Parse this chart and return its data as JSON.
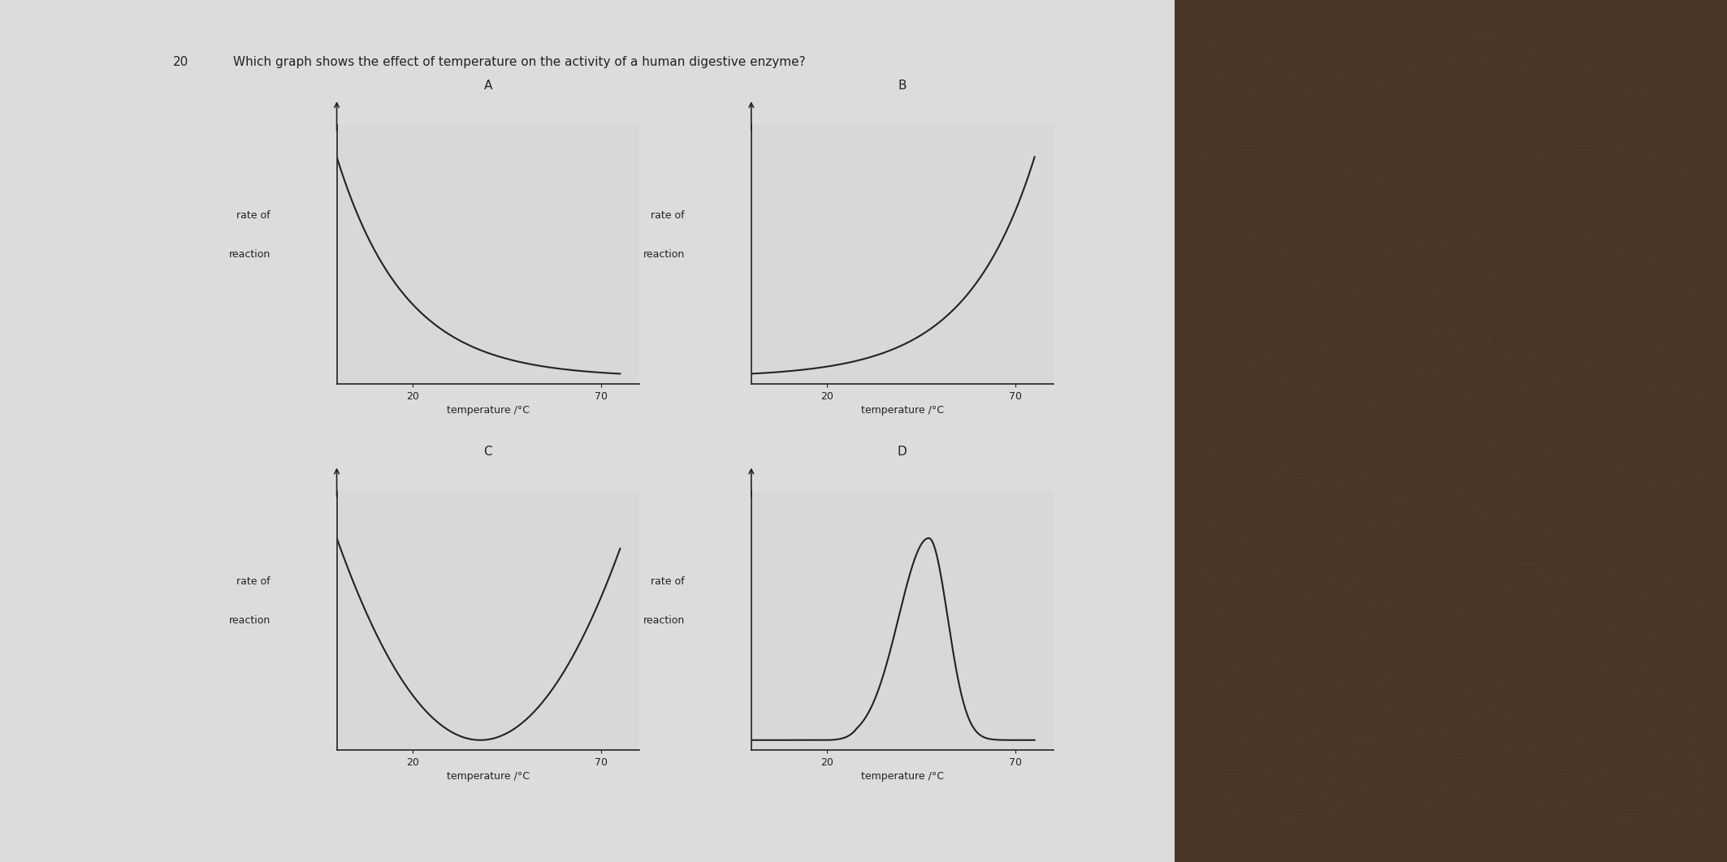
{
  "title_num": "20",
  "title_text": "Which graph shows the effect of temperature on the activity of a human digestive enzyme?",
  "title_fontsize": 11,
  "paper_color": "#dcdcdc",
  "wood_color": "#4a3728",
  "graph_A_label": "A",
  "graph_B_label": "B",
  "graph_C_label": "C",
  "graph_D_label": "D",
  "xlabel": "temperature /°C",
  "ylabel_line1": "rate of",
  "ylabel_line2": "reaction",
  "x_tick1": 20,
  "x_tick2": 70,
  "text_color": "#222222",
  "line_color": "#222222",
  "axis_color": "#222222",
  "subplot_facecolor": "#d8d8d8"
}
